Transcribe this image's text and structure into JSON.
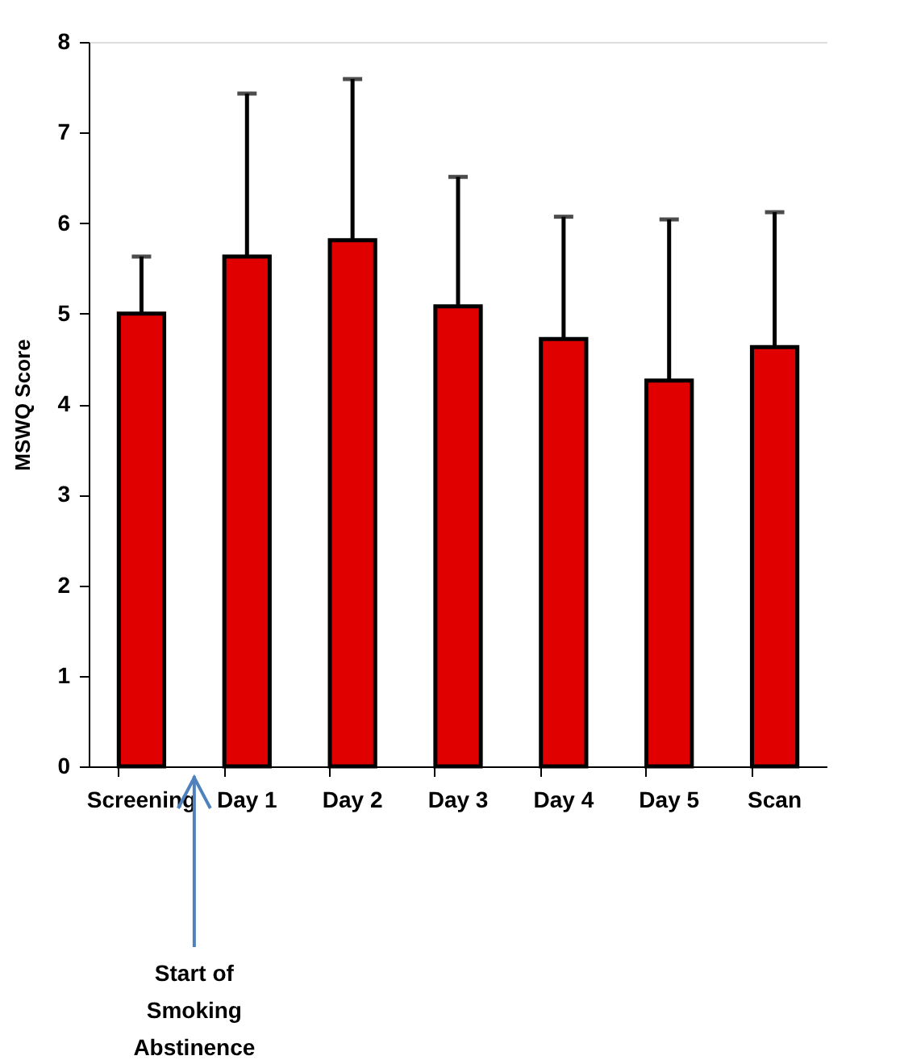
{
  "chart_data": {
    "type": "bar",
    "ylabel": "MSWQ Score",
    "categories": [
      "Screening",
      "Day 1",
      "Day 2",
      "Day 3",
      "Day 4",
      "Day 5",
      "Scan"
    ],
    "values": [
      5.0,
      5.63,
      5.81,
      5.08,
      4.72,
      4.26,
      4.63
    ],
    "errors": [
      [
        5.0,
        5.63
      ],
      [
        5.63,
        7.43
      ],
      [
        5.81,
        7.59
      ],
      [
        5.08,
        6.51
      ],
      [
        4.72,
        6.07
      ],
      [
        4.26,
        6.04
      ],
      [
        4.63,
        6.12
      ]
    ],
    "color": "#e00000",
    "ylim": [
      0,
      8
    ],
    "yticks": [
      0,
      1,
      2,
      3,
      4,
      5,
      6,
      7,
      8
    ],
    "grid": false,
    "annotations": [
      "Start of Smoking Abstinence"
    ]
  }
}
